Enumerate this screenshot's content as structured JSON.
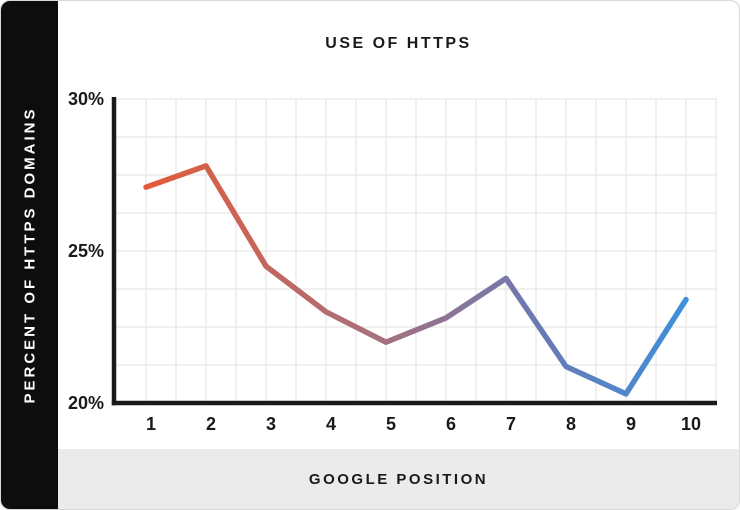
{
  "card": {
    "title": "USE OF HTTPS",
    "x_axis_title": "GOOGLE POSITION",
    "y_axis_title": "PERCENT OF HTTPS DOMAINS"
  },
  "colors": {
    "sidebar_bg": "#0d0d0d",
    "footer_bg": "#ebebeb",
    "text_dark": "#1a1a1a",
    "grid_line": "#e8e8e8",
    "axis_line": "#1a1a1a",
    "line_gradient_start": "#e25c39",
    "line_gradient_mid1": "#a8707c",
    "line_gradient_mid2": "#6b79b2",
    "line_gradient_end": "#3e90db"
  },
  "chart_data": {
    "type": "line",
    "title": "USE OF HTTPS",
    "xlabel": "GOOGLE POSITION",
    "ylabel": "PERCENT OF HTTPS DOMAINS",
    "categories": [
      "1",
      "2",
      "3",
      "4",
      "5",
      "6",
      "7",
      "8",
      "9",
      "10"
    ],
    "values": [
      27.1,
      27.8,
      24.5,
      23.0,
      22.0,
      22.8,
      24.1,
      21.2,
      20.3,
      23.4
    ],
    "ylim": [
      20,
      30
    ],
    "yticks": [
      {
        "value": 30,
        "label": "30%"
      },
      {
        "value": 25,
        "label": "25%"
      },
      {
        "value": 20,
        "label": "20%"
      }
    ],
    "grid": true,
    "legend": false
  }
}
